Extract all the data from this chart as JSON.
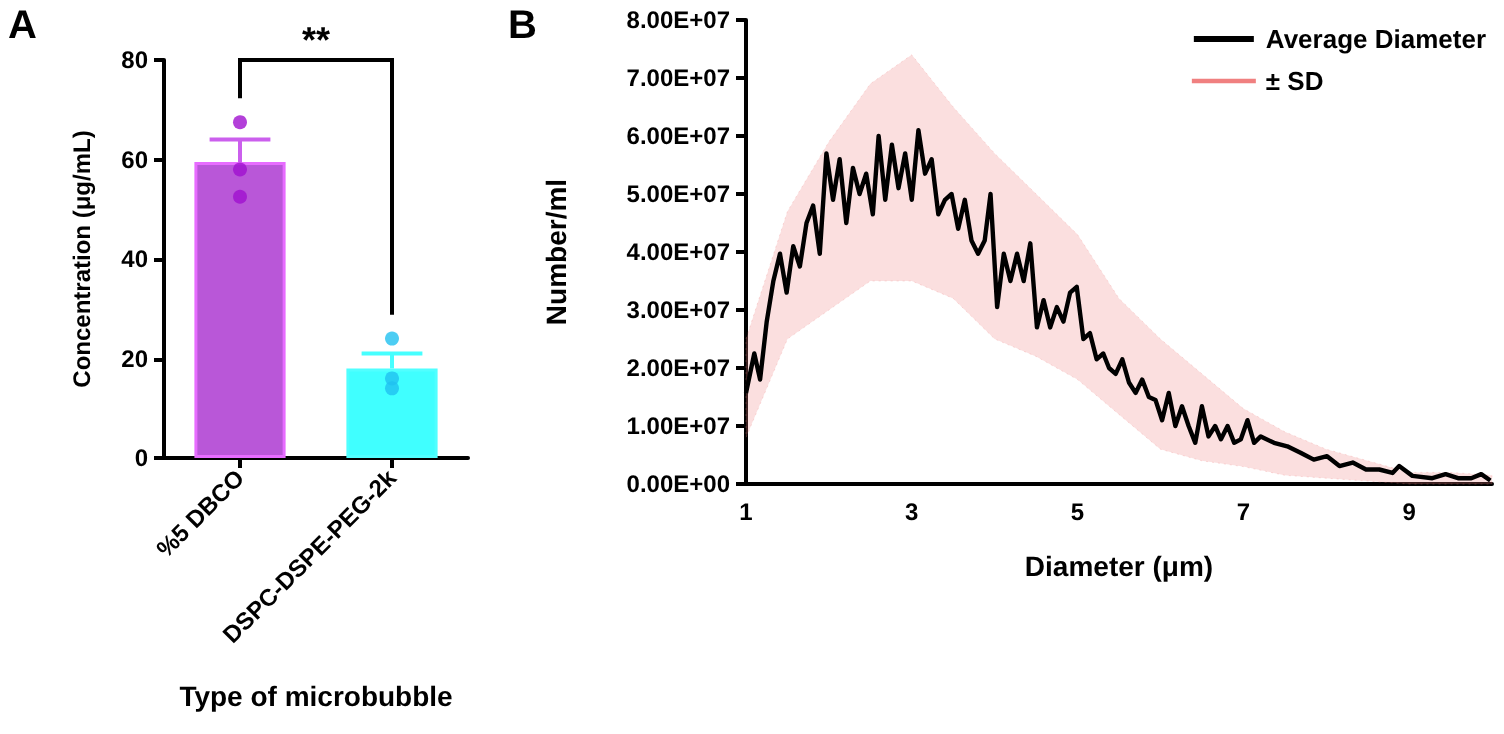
{
  "chart_data": [
    {
      "type": "bar",
      "title": "A",
      "xlabel": "Type of microbubble",
      "ylabel": "Concentration (μg/mL)",
      "categories": [
        "%5 DBCO",
        "DSPC-DSPE-PEG-2k"
      ],
      "series": [
        {
          "values": [
            59.5,
            18
          ],
          "colors": [
            "#b957d8",
            "#40ffff"
          ],
          "errors": [
            [
              59.5,
              64
            ],
            [
              18,
              21
            ]
          ]
        },
        {
          "type": "scatter",
          "x": [
            "%5 DBCO",
            "%5 DBCO",
            "%5 DBCO",
            "DSPC-DSPE-PEG-2k",
            "DSPC-DSPE-PEG-2k",
            "DSPC-DSPE-PEG-2k"
          ],
          "values": [
            67.5,
            58,
            52.5,
            24,
            16,
            14
          ],
          "colors": [
            "#a010d0",
            "#a010d0",
            "#a010d0",
            "#20c0f0",
            "#20c0f0",
            "#20c0f0"
          ]
        }
      ],
      "ylim": [
        0,
        80
      ],
      "yticks": [
        0,
        20,
        40,
        60,
        80
      ],
      "annotations": [
        "**"
      ]
    },
    {
      "type": "line",
      "title": "B",
      "xlabel": "Diameter (μm)",
      "ylabel": "Number/ml",
      "x": [
        1.0,
        1.1,
        1.17,
        1.25,
        1.33,
        1.41,
        1.49,
        1.57,
        1.65,
        1.73,
        1.81,
        1.89,
        1.97,
        2.05,
        2.13,
        2.21,
        2.29,
        2.37,
        2.45,
        2.53,
        2.6,
        2.68,
        2.76,
        2.84,
        2.92,
        3.0,
        3.08,
        3.16,
        3.24,
        3.32,
        3.4,
        3.48,
        3.56,
        3.64,
        3.72,
        3.8,
        3.88,
        3.95,
        4.03,
        4.11,
        4.19,
        4.27,
        4.35,
        4.43,
        4.51,
        4.59,
        4.67,
        4.75,
        4.83,
        4.91,
        4.99,
        5.07,
        5.15,
        5.23,
        5.31,
        5.38,
        5.46,
        5.54,
        5.62,
        5.7,
        5.78,
        5.86,
        5.94,
        6.02,
        6.1,
        6.18,
        6.26,
        6.34,
        6.42,
        6.5,
        6.58,
        6.66,
        6.73,
        6.81,
        6.89,
        6.97,
        7.05,
        7.13,
        7.21,
        7.37,
        7.53,
        7.69,
        7.85,
        8.01,
        8.16,
        8.32,
        8.48,
        8.64,
        8.8,
        8.88,
        9.04,
        9.28,
        9.44,
        9.59,
        9.75,
        9.87,
        9.98
      ],
      "series": [
        {
          "name": "Average Diameter",
          "color": "#000000",
          "values": [
            15700000,
            22500000,
            18000000,
            28000000,
            35000000,
            39700000,
            33000000,
            41000000,
            37500000,
            45000000,
            48000000,
            39700000,
            57000000,
            49000000,
            56000000,
            45000000,
            54500000,
            50000000,
            53500000,
            46500000,
            60000000,
            49000000,
            58500000,
            51000000,
            57000000,
            49000000,
            61000000,
            53500000,
            56000000,
            46500000,
            49000000,
            50000000,
            44000000,
            49000000,
            42000000,
            39700000,
            42000000,
            50000000,
            30500000,
            39700000,
            35000000,
            39700000,
            35000000,
            41500000,
            27000000,
            31700000,
            27000000,
            30500000,
            28000000,
            33000000,
            34000000,
            25000000,
            26000000,
            21500000,
            22500000,
            20000000,
            19000000,
            21500000,
            17500000,
            15700000,
            18000000,
            15000000,
            14500000,
            11000000,
            15700000,
            10000000,
            13400000,
            10000000,
            7100000,
            13400000,
            8200000,
            10000000,
            7700000,
            10000000,
            7100000,
            7700000,
            11000000,
            7100000,
            8200000,
            7100000,
            6500000,
            5400000,
            4200000,
            4800000,
            3100000,
            3700000,
            2500000,
            2500000,
            1900000,
            3100000,
            1400000,
            1000000,
            1700000,
            1000000,
            1000000,
            1700000,
            600000
          ]
        },
        {
          "name": "± SD",
          "color": "#f08080",
          "line_style": "dotted",
          "x": [
            1,
            1.5,
            2,
            2.5,
            3,
            3.5,
            4,
            4.5,
            5,
            5.5,
            6,
            6.5,
            7,
            7.5,
            8,
            8.5,
            9,
            9.5,
            10
          ],
          "values": [
            null,
            null,
            null,
            null,
            null,
            null,
            null,
            null,
            null,
            null,
            null,
            null,
            null,
            null,
            null,
            null,
            null,
            null,
            null
          ],
          "upper": [
            25000000,
            47000000,
            59000000,
            69000000,
            74000000,
            65000000,
            57000000,
            50000000,
            43000000,
            32000000,
            25000000,
            19000000,
            13000000,
            9000000,
            6000000,
            4000000,
            2000000,
            2000000,
            1500000
          ],
          "lower": [
            8000000,
            25000000,
            30000000,
            35000000,
            35000000,
            32000000,
            25000000,
            22000000,
            18000000,
            12000000,
            6000000,
            4000000,
            3000000,
            1500000,
            1000000,
            500000,
            0,
            0,
            0
          ]
        }
      ],
      "xlim": [
        1,
        10
      ],
      "xticks": [
        1,
        3,
        5,
        7,
        9
      ],
      "ylim": [
        0,
        80000000
      ],
      "yticks": [
        {
          "value": 0,
          "label": "0.00E+00"
        },
        {
          "value": 10000000,
          "label": "1.00E+07"
        },
        {
          "value": 20000000,
          "label": "2.00E+07"
        },
        {
          "value": 30000000,
          "label": "3.00E+07"
        },
        {
          "value": 40000000,
          "label": "4.00E+07"
        },
        {
          "value": 50000000,
          "label": "5.00E+07"
        },
        {
          "value": 60000000,
          "label": "6.00E+07"
        },
        {
          "value": 70000000,
          "label": "7.00E+07"
        },
        {
          "value": 80000000,
          "label": "8.00E+07"
        }
      ],
      "legend": "top right"
    }
  ]
}
